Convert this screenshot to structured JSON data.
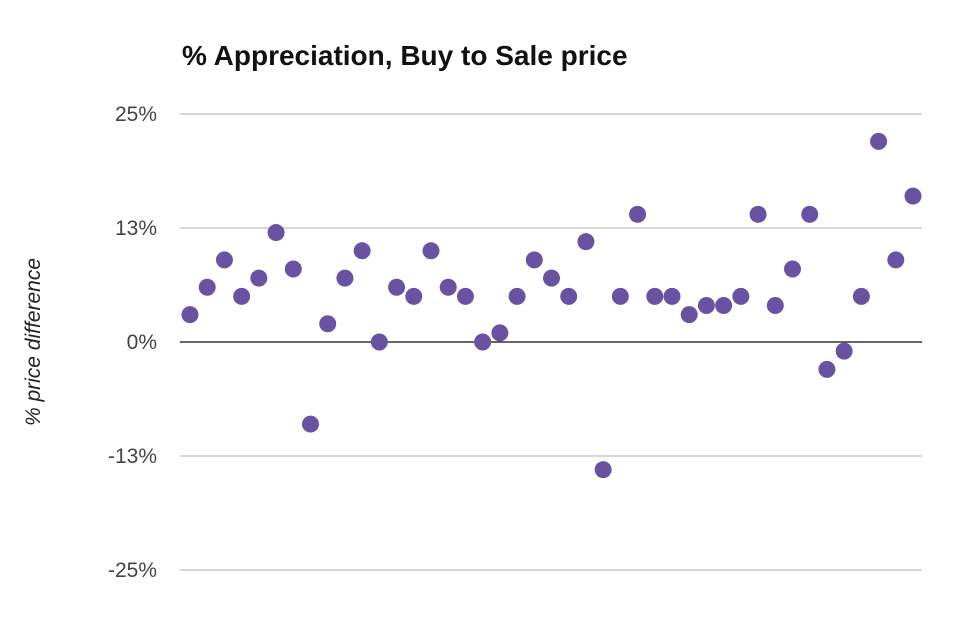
{
  "chart_data": {
    "type": "scatter",
    "title": "% Appreciation, Buy to Sale price",
    "xlabel": "",
    "ylabel": "% price difference",
    "ylim": [
      -25,
      25
    ],
    "yticks": [
      25,
      12.5,
      0,
      -12.5,
      -25
    ],
    "ytick_labels": [
      "25%",
      "13%",
      "0%",
      "-13%",
      "-25%"
    ],
    "grid": true,
    "legend": "none",
    "point_color": "#6a52a3",
    "series": [
      {
        "values": [
          3,
          6,
          9,
          5,
          7,
          12,
          8,
          -9,
          2,
          7,
          10,
          0,
          6,
          5,
          10,
          6,
          5,
          0,
          1,
          5,
          9,
          7,
          5,
          11,
          -14,
          5,
          14,
          5,
          5,
          3,
          4,
          4,
          5,
          14,
          4,
          8,
          14,
          -3,
          -1,
          5,
          22,
          9,
          16
        ]
      }
    ]
  }
}
